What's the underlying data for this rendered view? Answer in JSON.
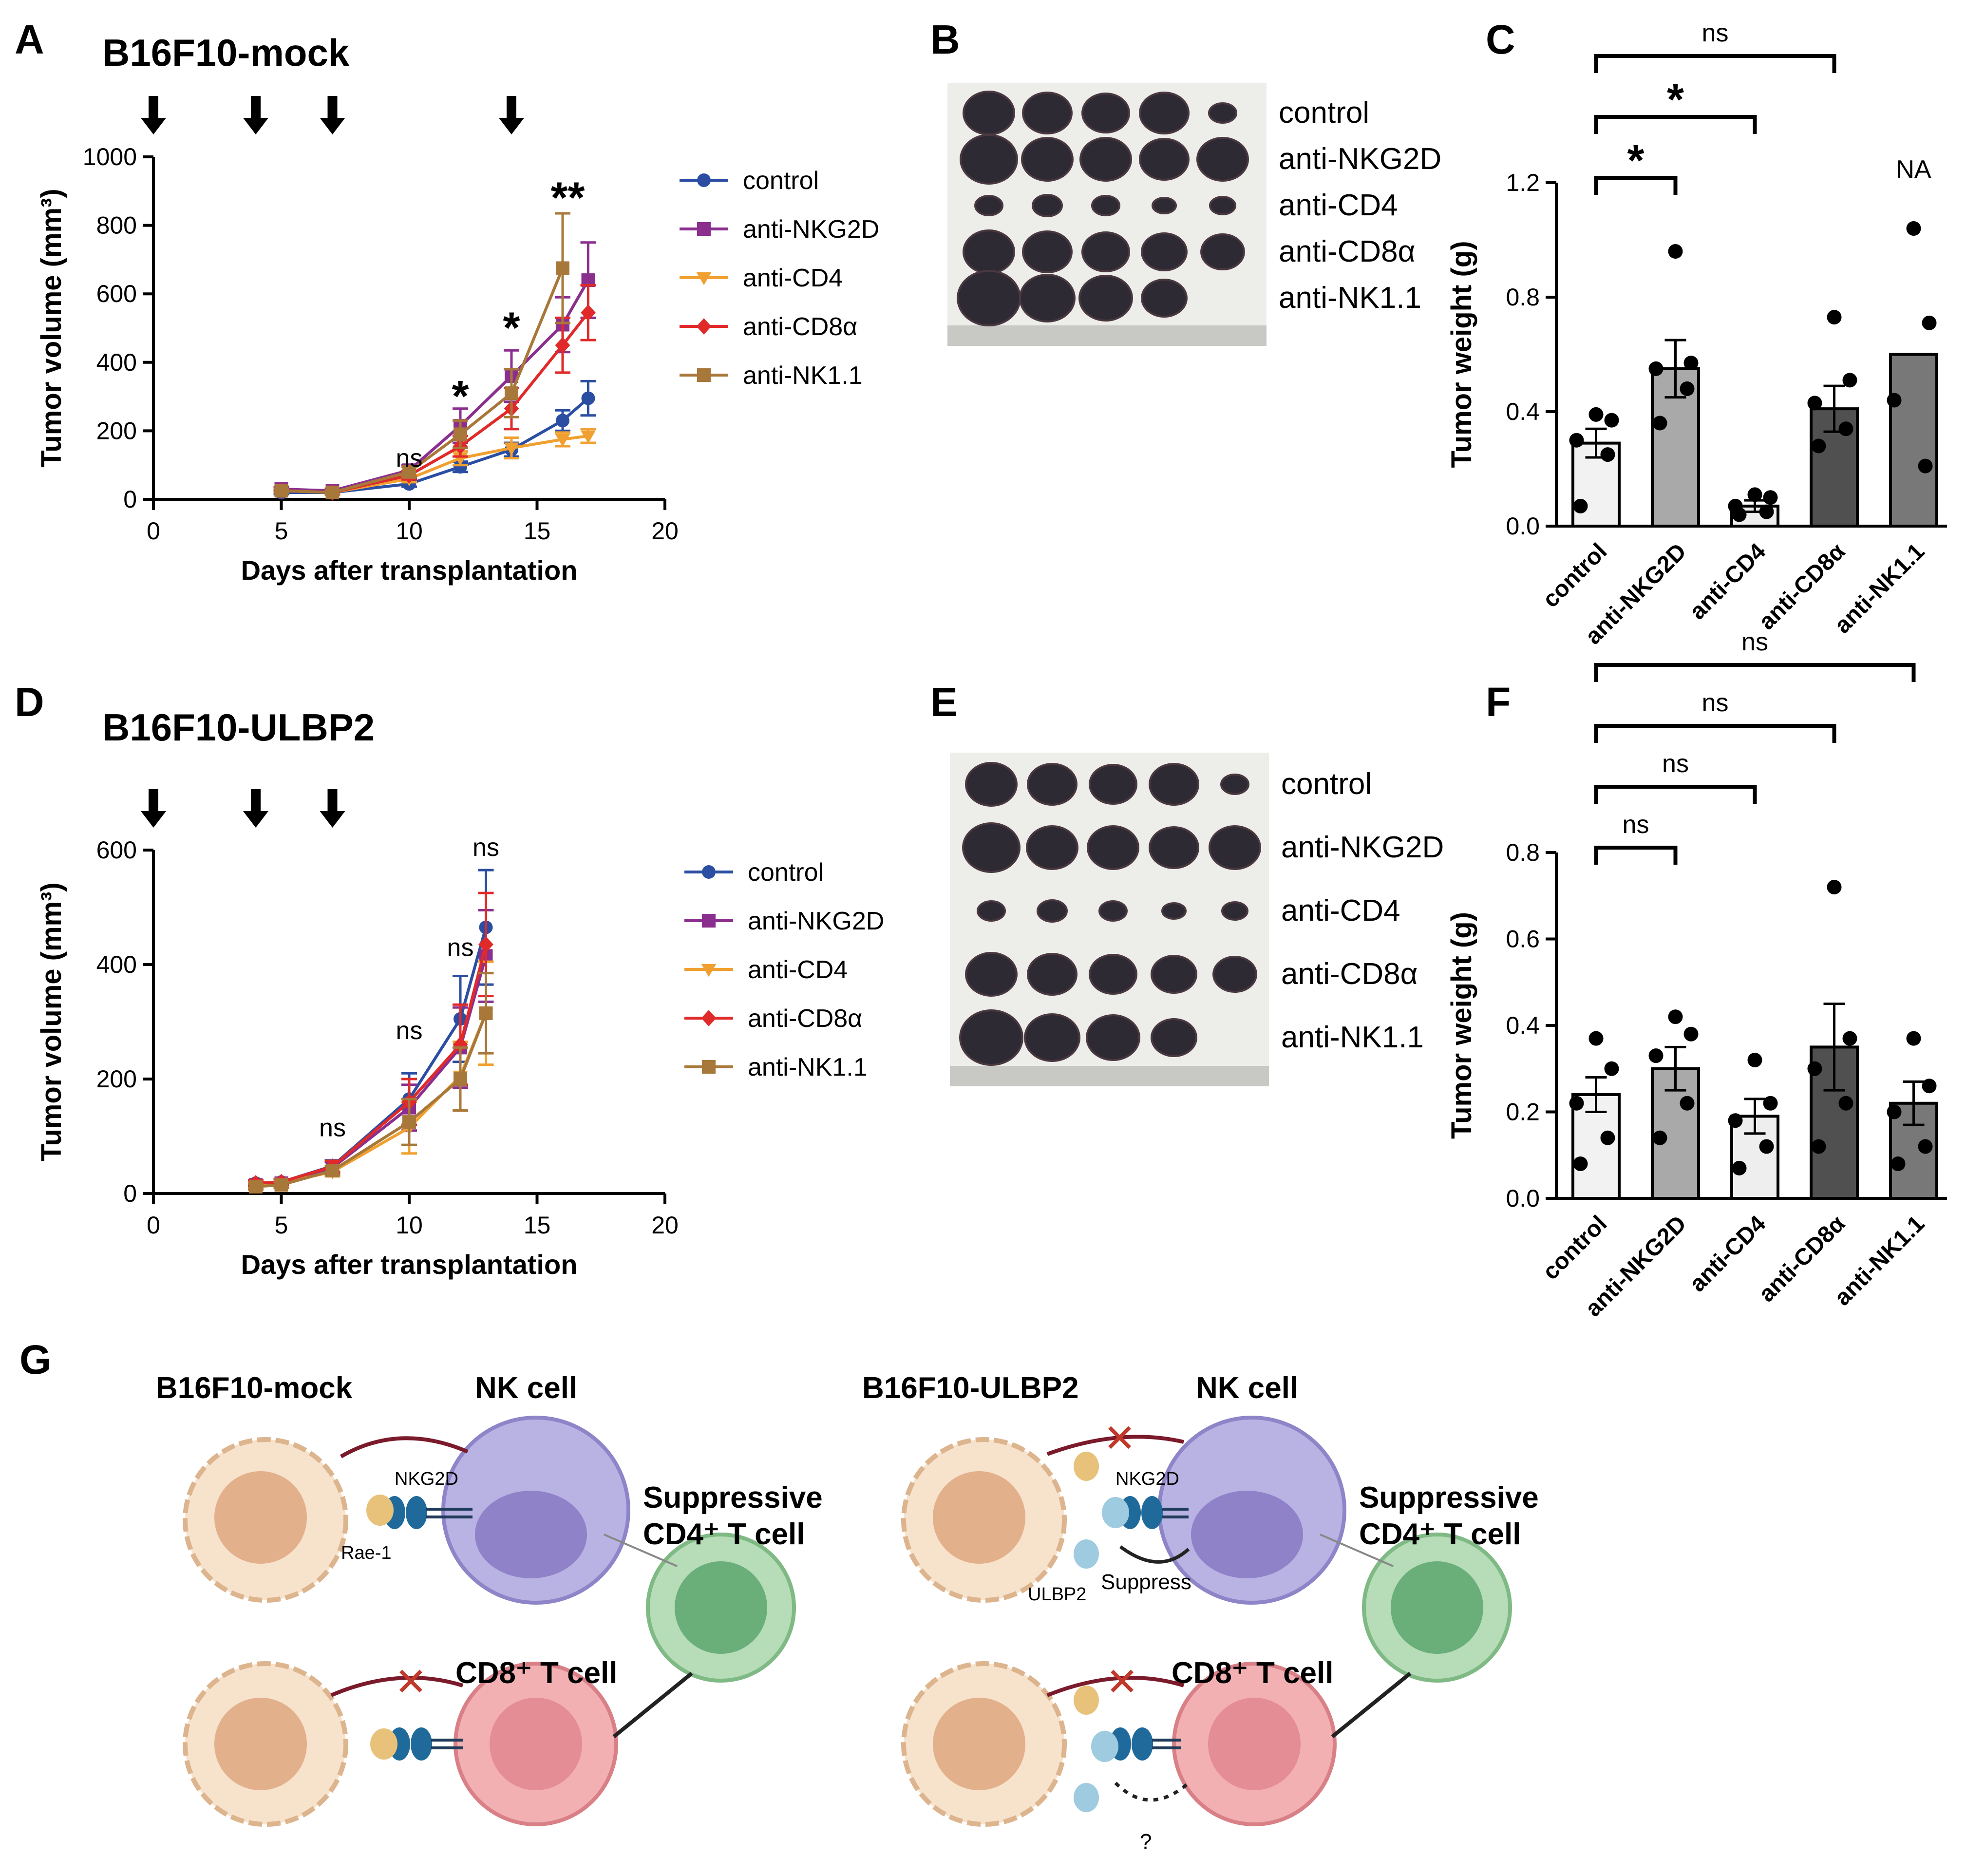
{
  "panels": {
    "A": {
      "letter": "A",
      "title": "B16F10-mock"
    },
    "B": {
      "letter": "B"
    },
    "C": {
      "letter": "C"
    },
    "D": {
      "letter": "D",
      "title": "B16F10-ULBP2"
    },
    "E": {
      "letter": "E"
    },
    "F": {
      "letter": "F"
    },
    "G": {
      "letter": "G"
    }
  },
  "colors": {
    "control": "#2b4ea2",
    "anti-NKG2D": "#8b2f8f",
    "anti-CD4": "#f0a030",
    "anti-CD8α": "#e02a2a",
    "anti-NK1.1": "#a8783a"
  },
  "chart_data": [
    {
      "id": "A",
      "type": "line",
      "xlabel": "Days after transplantation",
      "ylabel": "Tumor volume (mm³)",
      "xlim": [
        0,
        20
      ],
      "ylim": [
        0,
        1000
      ],
      "xticks": [
        0,
        5,
        10,
        15,
        20
      ],
      "yticks": [
        0,
        200,
        400,
        600,
        800,
        1000
      ],
      "treatment_days": [
        0,
        4,
        7,
        14
      ],
      "x": [
        5,
        7,
        10,
        12,
        14,
        16,
        17
      ],
      "legend": "right",
      "series": [
        {
          "name": "control",
          "marker": "circle",
          "values": [
            20,
            20,
            45,
            95,
            145,
            230,
            295
          ],
          "err": [
            5,
            5,
            8,
            15,
            20,
            30,
            50
          ]
        },
        {
          "name": "anti-NKG2D",
          "marker": "square",
          "values": [
            30,
            25,
            85,
            215,
            360,
            510,
            640
          ],
          "err": [
            6,
            6,
            15,
            50,
            75,
            80,
            110
          ]
        },
        {
          "name": "anti-CD4",
          "marker": "triangle",
          "values": [
            25,
            20,
            60,
            120,
            150,
            175,
            185
          ],
          "err": [
            5,
            5,
            10,
            20,
            30,
            20,
            20
          ]
        },
        {
          "name": "anti-CD8α",
          "marker": "diamond",
          "values": [
            25,
            20,
            70,
            155,
            265,
            450,
            545
          ],
          "err": [
            6,
            6,
            12,
            30,
            60,
            80,
            80
          ]
        },
        {
          "name": "anti-NK1.1",
          "marker": "square",
          "values": [
            25,
            20,
            80,
            190,
            310,
            675,
            0
          ],
          "err": [
            6,
            6,
            15,
            40,
            70,
            160,
            0
          ]
        }
      ],
      "annotations": [
        {
          "x": 10,
          "y": 95,
          "text": "ns"
        },
        {
          "x": 12,
          "y": 300,
          "text": "*"
        },
        {
          "x": 14,
          "y": 500,
          "text": "*"
        },
        {
          "x": 16.2,
          "y": 880,
          "text": "**"
        }
      ]
    },
    {
      "id": "C",
      "type": "bar",
      "ylabel": "Tumor weight (g)",
      "ylim": [
        0,
        1.2
      ],
      "yticks": [
        "0.0",
        "0.4",
        "0.8",
        "1.2"
      ],
      "categories": [
        "control",
        "anti-NKG2D",
        "anti-CD4",
        "anti-CD8α",
        "anti-NK1.1"
      ],
      "values": [
        0.29,
        0.55,
        0.07,
        0.41,
        0.6
      ],
      "sem": [
        0.05,
        0.1,
        0.02,
        0.08,
        0.0
      ],
      "bar_colors": [
        "#f2f2f2",
        "#a9a9a9",
        "#eeeeee",
        "#505050",
        "#787878"
      ],
      "points": [
        [
          0.39,
          0.37,
          0.3,
          0.25,
          0.07
        ],
        [
          0.96,
          0.57,
          0.55,
          0.48,
          0.36
        ],
        [
          0.11,
          0.1,
          0.07,
          0.05,
          0.04
        ],
        [
          0.73,
          0.51,
          0.43,
          0.34,
          0.28
        ],
        [
          1.04,
          0.71,
          0.44,
          0.21
        ]
      ],
      "brackets": [
        {
          "from": 0,
          "to": 1,
          "text": "*"
        },
        {
          "from": 0,
          "to": 2,
          "text": "*"
        },
        {
          "from": 0,
          "to": 3,
          "text": "ns"
        }
      ],
      "na_label": {
        "index": 4,
        "text": "NA"
      }
    },
    {
      "id": "D",
      "type": "line",
      "xlabel": "Days after transplantation",
      "ylabel": "Tumor volume (mm³)",
      "xlim": [
        0,
        20
      ],
      "ylim": [
        0,
        600
      ],
      "xticks": [
        0,
        5,
        10,
        15,
        20
      ],
      "yticks": [
        0,
        200,
        400,
        600
      ],
      "treatment_days": [
        0,
        4,
        7
      ],
      "x": [
        4,
        5,
        7,
        10,
        12,
        13
      ],
      "legend": "right",
      "series": [
        {
          "name": "control",
          "marker": "circle",
          "values": [
            18,
            20,
            48,
            165,
            305,
            465
          ],
          "err": [
            5,
            5,
            10,
            45,
            75,
            100
          ]
        },
        {
          "name": "anti-NKG2D",
          "marker": "square",
          "values": [
            15,
            18,
            45,
            150,
            255,
            415
          ],
          "err": [
            5,
            5,
            10,
            40,
            70,
            80
          ]
        },
        {
          "name": "anti-CD4",
          "marker": "triangle",
          "values": [
            15,
            18,
            38,
            115,
            205,
            315
          ],
          "err": [
            5,
            5,
            8,
            45,
            60,
            90
          ]
        },
        {
          "name": "anti-CD8α",
          "marker": "diamond",
          "values": [
            18,
            20,
            47,
            160,
            260,
            435
          ],
          "err": [
            5,
            5,
            10,
            40,
            70,
            90
          ]
        },
        {
          "name": "anti-NK1.1",
          "marker": "square",
          "values": [
            12,
            15,
            40,
            125,
            200,
            315
          ],
          "err": [
            5,
            5,
            8,
            40,
            55,
            70
          ]
        }
      ],
      "annotations": [
        {
          "x": 7,
          "y": 100,
          "text": "ns"
        },
        {
          "x": 10,
          "y": 270,
          "text": "ns"
        },
        {
          "x": 12,
          "y": 415,
          "text": "ns"
        },
        {
          "x": 13,
          "y": 590,
          "text": "ns"
        }
      ]
    },
    {
      "id": "F",
      "type": "bar",
      "ylabel": "Tumor weight (g)",
      "ylim": [
        0,
        0.8
      ],
      "yticks": [
        "0.0",
        "0.2",
        "0.4",
        "0.6",
        "0.8"
      ],
      "categories": [
        "control",
        "anti-NKG2D",
        "anti-CD4",
        "anti-CD8α",
        "anti-NK1.1"
      ],
      "values": [
        0.24,
        0.3,
        0.19,
        0.35,
        0.22
      ],
      "sem": [
        0.04,
        0.05,
        0.04,
        0.1,
        0.05
      ],
      "bar_colors": [
        "#f2f2f2",
        "#a9a9a9",
        "#eeeeee",
        "#505050",
        "#787878"
      ],
      "points": [
        [
          0.37,
          0.3,
          0.22,
          0.14,
          0.08
        ],
        [
          0.42,
          0.38,
          0.33,
          0.22,
          0.14
        ],
        [
          0.32,
          0.22,
          0.18,
          0.12,
          0.07
        ],
        [
          0.72,
          0.37,
          0.3,
          0.22,
          0.12
        ],
        [
          0.37,
          0.26,
          0.2,
          0.12,
          0.08
        ]
      ],
      "brackets": [
        {
          "from": 0,
          "to": 1,
          "text": "ns"
        },
        {
          "from": 0,
          "to": 2,
          "text": "ns"
        },
        {
          "from": 0,
          "to": 3,
          "text": "ns"
        },
        {
          "from": 0,
          "to": 4,
          "text": "ns"
        }
      ]
    }
  ],
  "photos": {
    "B": {
      "labels": [
        "control",
        "anti-NKG2D",
        "anti-CD4",
        "anti-CD8α",
        "anti-NK1.1"
      ]
    },
    "E": {
      "labels": [
        "control",
        "anti-NKG2D",
        "anti-CD4",
        "anti-CD8α",
        "anti-NK1.1"
      ]
    }
  },
  "schematic": {
    "left": {
      "tumor_title": "B16F10-mock",
      "nk_title": "NK cell",
      "nkg2d": "NKG2D",
      "ligand": "Rae-1",
      "cd4_title_1": "Suppressive",
      "cd4_title_2": "CD4⁺ T cell",
      "cd8_title": "CD8⁺ T cell"
    },
    "right": {
      "tumor_title": "B16F10-ULBP2",
      "nk_title": "NK cell",
      "nkg2d": "NKG2D",
      "ligand": "ULBP2",
      "suppress": "Suppress",
      "question": "?",
      "cd4_title_1": "Suppressive",
      "cd4_title_2": "CD4⁺ T cell",
      "cd8_title": "CD8⁺ T cell"
    }
  }
}
